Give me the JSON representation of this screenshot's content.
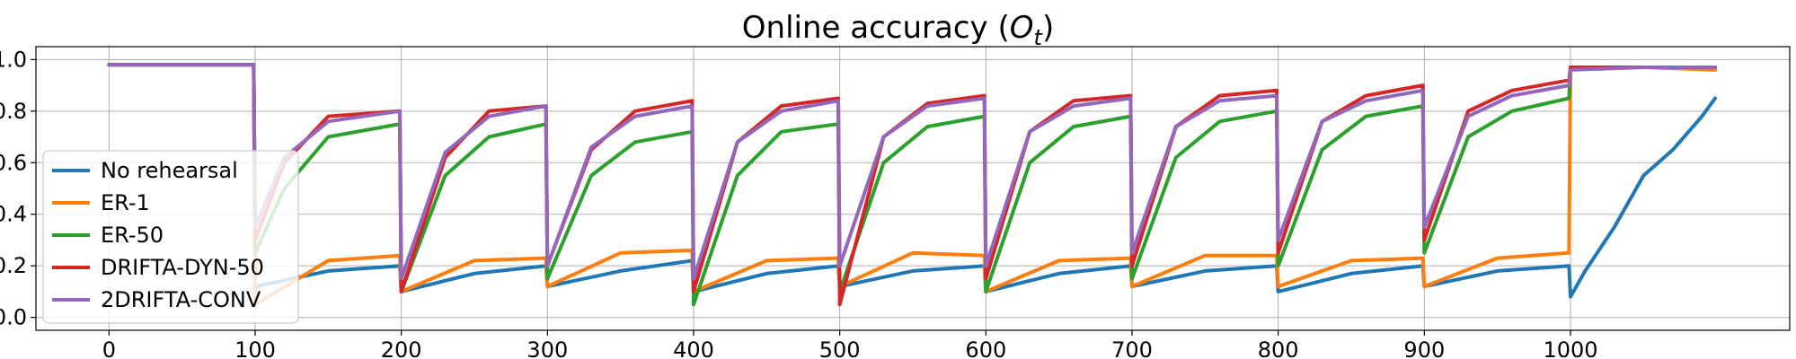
{
  "chart_data": {
    "type": "line",
    "title": "Online accuracy (",
    "title_symbol": "O",
    "title_subscript": "t",
    "title_close": ")",
    "xlabel": "",
    "ylabel": "",
    "xlim": [
      -50,
      1150
    ],
    "ylim": [
      -0.05,
      1.05
    ],
    "grid": true,
    "legend_position": "left",
    "x_ticks": [
      0,
      100,
      200,
      300,
      400,
      500,
      600,
      700,
      800,
      900,
      1000
    ],
    "x_tick_labels": [
      "0",
      "100",
      "200",
      "300",
      "400",
      "500",
      "600",
      "700",
      "800",
      "900",
      "1000"
    ],
    "y_ticks": [
      0.0,
      0.2,
      0.4,
      0.6,
      0.8,
      1.0
    ],
    "y_tick_labels": [
      "0.0",
      "0.2",
      "0.4",
      "0.6",
      "0.8",
      "1.0"
    ],
    "series": [
      {
        "name": "No rehearsal",
        "color": "#1f77b4",
        "x": [
          0,
          50,
          99,
          100,
          150,
          199,
          200,
          250,
          299,
          300,
          350,
          399,
          400,
          450,
          499,
          500,
          550,
          599,
          600,
          650,
          699,
          700,
          750,
          799,
          800,
          850,
          899,
          900,
          950,
          999,
          1000,
          1010,
          1030,
          1050,
          1070,
          1090,
          1099
        ],
        "values": [
          0.98,
          0.98,
          0.98,
          0.12,
          0.18,
          0.2,
          0.1,
          0.17,
          0.2,
          0.12,
          0.18,
          0.22,
          0.1,
          0.17,
          0.2,
          0.12,
          0.18,
          0.2,
          0.1,
          0.17,
          0.2,
          0.12,
          0.18,
          0.2,
          0.1,
          0.17,
          0.2,
          0.12,
          0.18,
          0.2,
          0.08,
          0.18,
          0.35,
          0.55,
          0.65,
          0.78,
          0.85
        ]
      },
      {
        "name": "ER-1",
        "color": "#ff7f0e",
        "x": [
          0,
          50,
          99,
          100,
          150,
          199,
          200,
          250,
          299,
          300,
          350,
          399,
          400,
          450,
          499,
          500,
          550,
          599,
          600,
          650,
          699,
          700,
          750,
          799,
          800,
          850,
          899,
          900,
          950,
          999,
          1000,
          1050,
          1099
        ],
        "values": [
          0.98,
          0.98,
          0.98,
          0.05,
          0.22,
          0.24,
          0.1,
          0.22,
          0.23,
          0.12,
          0.25,
          0.26,
          0.1,
          0.22,
          0.23,
          0.12,
          0.25,
          0.24,
          0.1,
          0.22,
          0.23,
          0.12,
          0.24,
          0.24,
          0.12,
          0.22,
          0.23,
          0.12,
          0.23,
          0.25,
          0.97,
          0.97,
          0.96
        ]
      },
      {
        "name": "ER-50",
        "color": "#2ca02c",
        "x": [
          0,
          50,
          99,
          100,
          120,
          150,
          199,
          200,
          230,
          260,
          299,
          300,
          330,
          360,
          399,
          400,
          430,
          460,
          499,
          500,
          530,
          560,
          599,
          600,
          630,
          660,
          699,
          700,
          730,
          760,
          799,
          800,
          830,
          860,
          899,
          900,
          930,
          960,
          999,
          1000,
          1050,
          1099
        ],
        "values": [
          0.98,
          0.98,
          0.98,
          0.25,
          0.5,
          0.7,
          0.75,
          0.1,
          0.55,
          0.7,
          0.75,
          0.15,
          0.55,
          0.68,
          0.72,
          0.05,
          0.55,
          0.72,
          0.75,
          0.1,
          0.6,
          0.74,
          0.78,
          0.1,
          0.6,
          0.74,
          0.78,
          0.15,
          0.62,
          0.76,
          0.8,
          0.2,
          0.65,
          0.78,
          0.82,
          0.25,
          0.7,
          0.8,
          0.85,
          0.97,
          0.97,
          0.97
        ]
      },
      {
        "name": "DRIFTA-DYN-50",
        "color": "#d62728",
        "x": [
          0,
          50,
          99,
          100,
          120,
          150,
          199,
          200,
          230,
          260,
          299,
          300,
          330,
          360,
          399,
          400,
          430,
          460,
          499,
          500,
          530,
          560,
          599,
          600,
          630,
          660,
          699,
          700,
          730,
          760,
          799,
          800,
          830,
          860,
          899,
          900,
          930,
          960,
          999,
          1000,
          1050,
          1099
        ],
        "values": [
          0.98,
          0.98,
          0.98,
          0.3,
          0.6,
          0.78,
          0.8,
          0.1,
          0.62,
          0.8,
          0.82,
          0.2,
          0.65,
          0.8,
          0.84,
          0.1,
          0.68,
          0.82,
          0.85,
          0.05,
          0.7,
          0.83,
          0.86,
          0.15,
          0.72,
          0.84,
          0.86,
          0.2,
          0.74,
          0.86,
          0.88,
          0.25,
          0.76,
          0.86,
          0.9,
          0.3,
          0.8,
          0.88,
          0.92,
          0.97,
          0.97,
          0.97
        ]
      },
      {
        "name": "2DRIFTA-CONV",
        "color": "#9467bd",
        "x": [
          0,
          50,
          99,
          100,
          120,
          150,
          199,
          200,
          230,
          260,
          299,
          300,
          330,
          360,
          399,
          400,
          430,
          460,
          499,
          500,
          530,
          560,
          599,
          600,
          630,
          660,
          699,
          700,
          730,
          760,
          799,
          800,
          830,
          860,
          899,
          900,
          930,
          960,
          999,
          1000,
          1050,
          1099
        ],
        "values": [
          0.98,
          0.98,
          0.98,
          0.35,
          0.62,
          0.76,
          0.8,
          0.15,
          0.64,
          0.78,
          0.82,
          0.2,
          0.66,
          0.78,
          0.82,
          0.15,
          0.68,
          0.8,
          0.84,
          0.2,
          0.7,
          0.82,
          0.85,
          0.2,
          0.72,
          0.82,
          0.85,
          0.25,
          0.74,
          0.84,
          0.86,
          0.3,
          0.76,
          0.84,
          0.88,
          0.35,
          0.78,
          0.86,
          0.9,
          0.96,
          0.97,
          0.97
        ]
      }
    ]
  }
}
